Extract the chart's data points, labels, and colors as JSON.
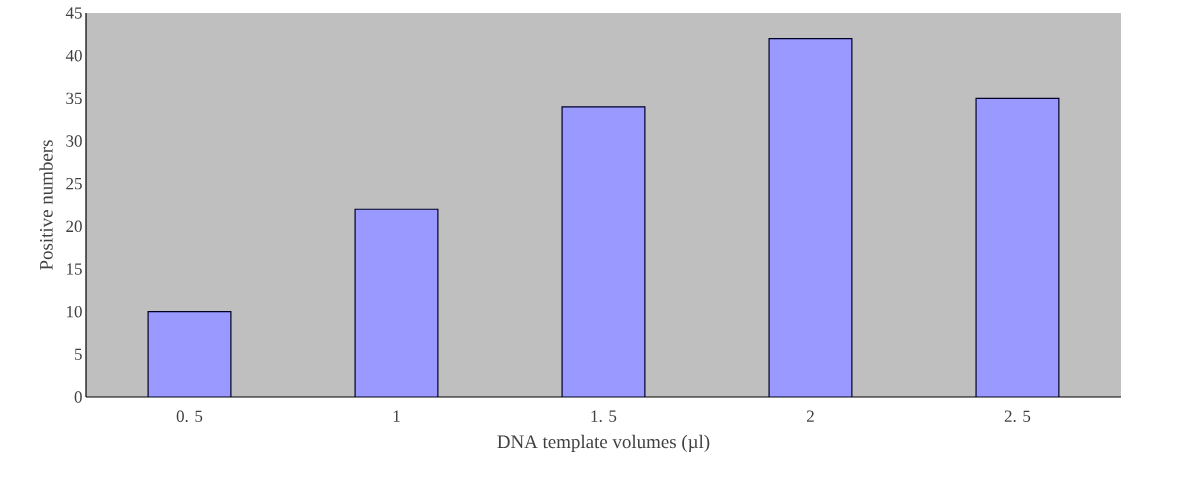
{
  "chart_data": {
    "type": "bar",
    "xlabel": "DNA template volumes (µl)",
    "ylabel": "Positive numbers",
    "categories": [
      "0. 5",
      "1",
      "1. 5",
      "2",
      "2. 5"
    ],
    "values": [
      10,
      22,
      34,
      42,
      35
    ],
    "color": "#9999ff",
    "ylim": [
      0,
      45
    ],
    "yticks": [
      0,
      5,
      10,
      15,
      20,
      25,
      30,
      35,
      40,
      45
    ]
  }
}
